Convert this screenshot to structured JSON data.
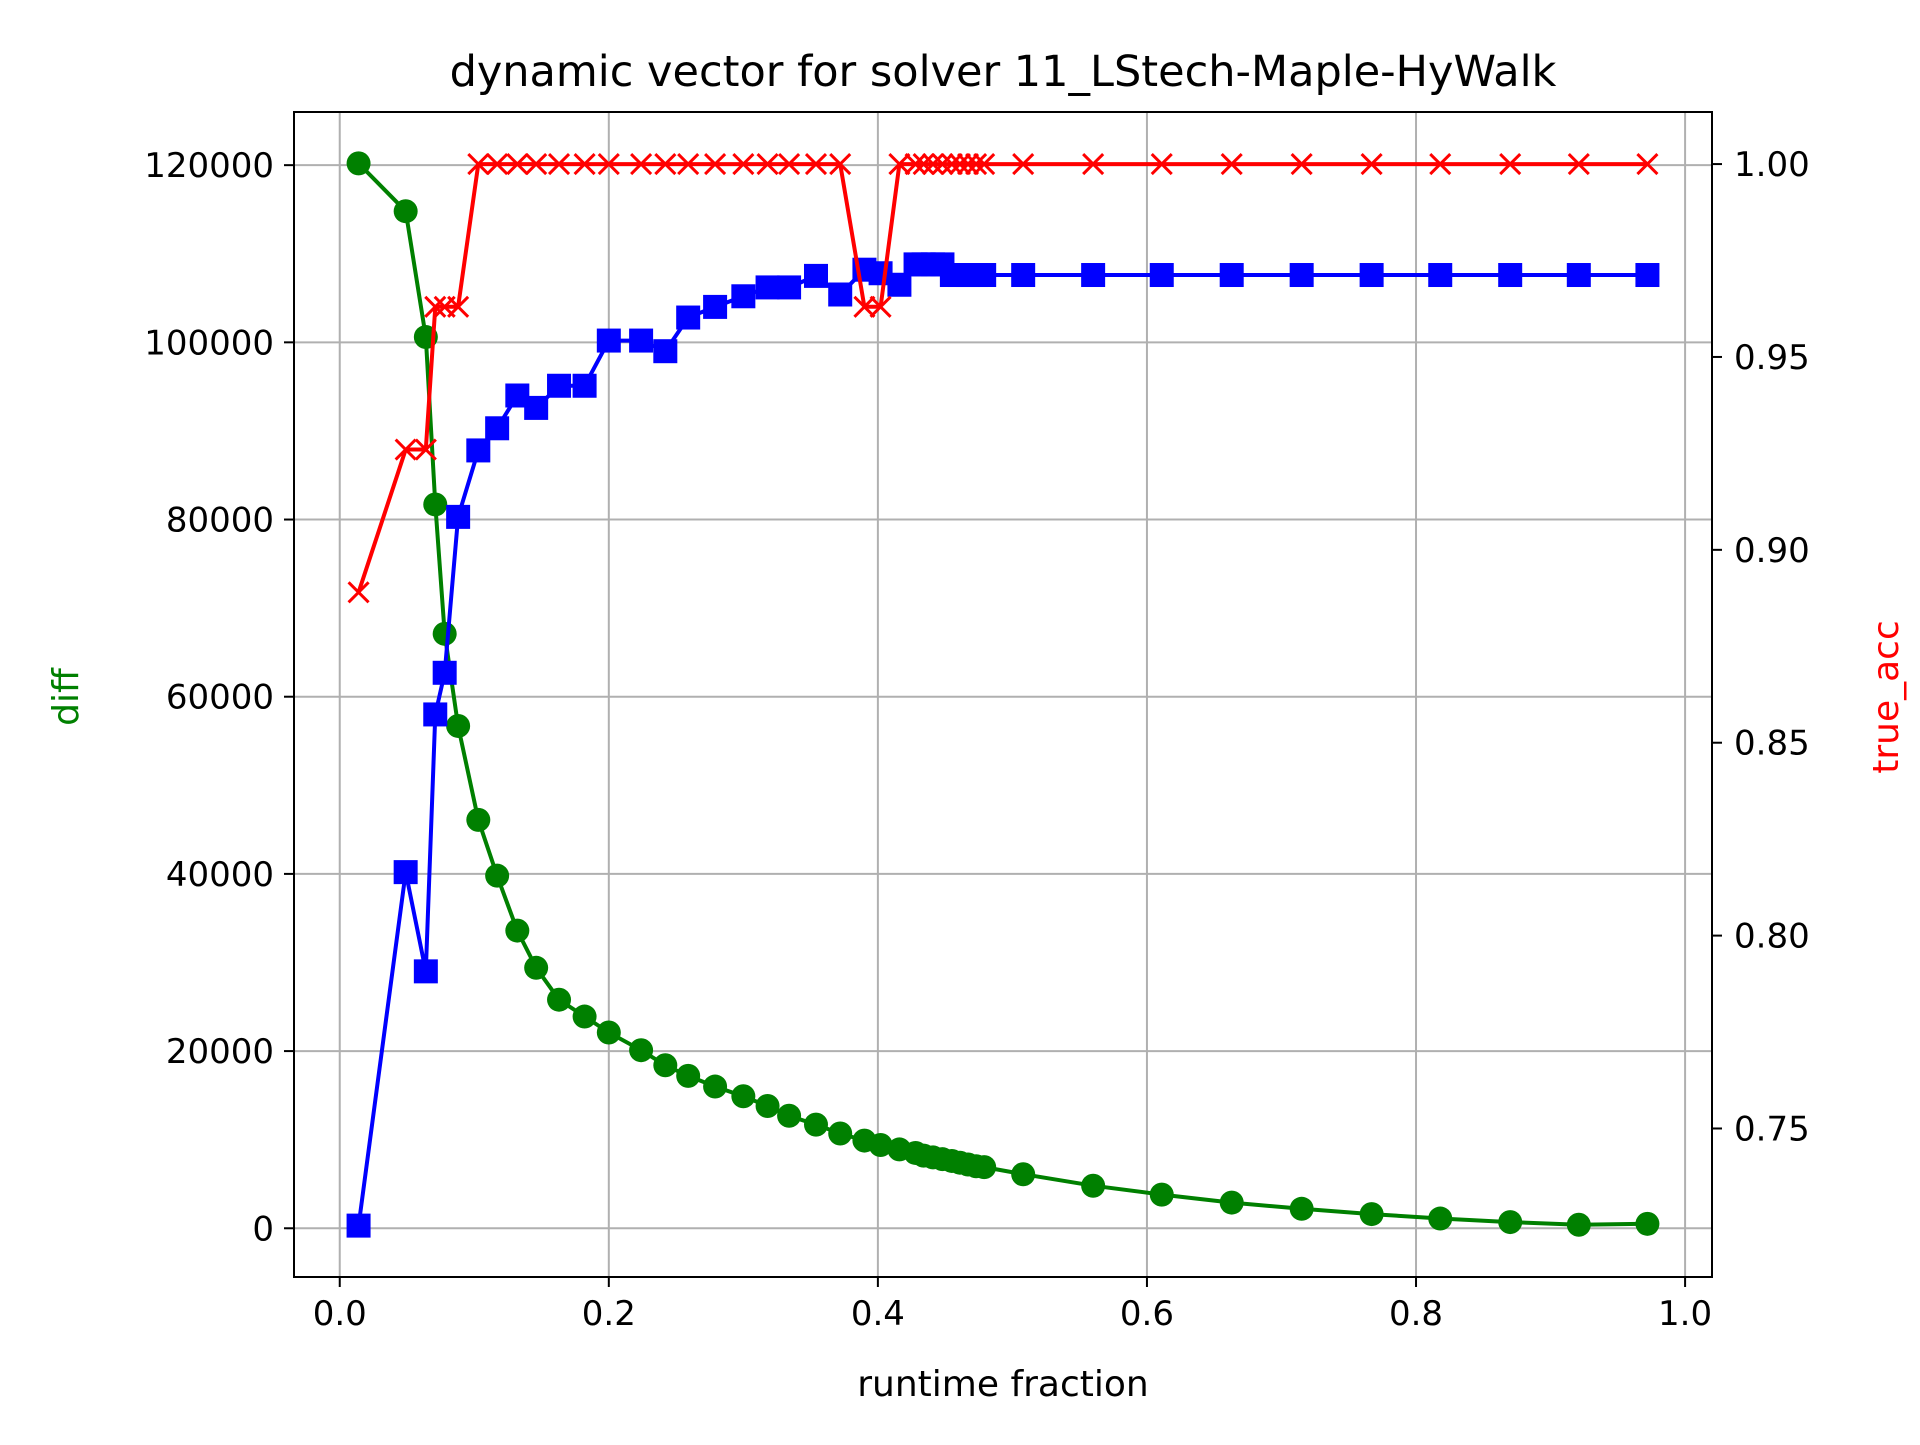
{
  "chart_data": {
    "type": "line",
    "title": "dynamic vector for solver 11_LStech-Maple-HyWalk",
    "xlabel": "runtime fraction",
    "ylabel": "diff",
    "y2label": "true_acc",
    "xlim": [
      -0.034,
      1.02
    ],
    "ylim": [
      -5500,
      126000
    ],
    "y2lim": [
      0.7115,
      1.0135
    ],
    "xticks": [
      "0.0",
      "0.2",
      "0.4",
      "0.6",
      "0.8",
      "1.0"
    ],
    "yticks": [
      "0",
      "20000",
      "40000",
      "60000",
      "80000",
      "100000",
      "120000"
    ],
    "y2ticks": [
      "0.75",
      "0.80",
      "0.85",
      "0.90",
      "0.95",
      "1.00"
    ],
    "grid": true,
    "colors": {
      "diff": "#008000",
      "blue_series": "#0000ff",
      "true_acc": "#ff0000",
      "grid": "#b0b0b0"
    },
    "series": [
      {
        "axis": "left",
        "color": "#008000",
        "marker": "circle",
        "x": [
          0.014,
          0.049,
          0.064,
          0.071,
          0.078,
          0.088,
          0.103,
          0.117,
          0.132,
          0.146,
          0.163,
          0.182,
          0.2,
          0.224,
          0.242,
          0.259,
          0.279,
          0.3,
          0.318,
          0.334,
          0.354,
          0.372,
          0.39,
          0.402,
          0.416,
          0.428,
          0.434,
          0.441,
          0.448,
          0.455,
          0.461,
          0.467,
          0.473,
          0.479,
          0.508,
          0.56,
          0.611,
          0.663,
          0.715,
          0.767,
          0.818,
          0.87,
          0.921,
          0.972
        ],
        "y": [
          120200,
          114800,
          100600,
          81700,
          67100,
          56700,
          46100,
          39800,
          33600,
          29400,
          25800,
          23900,
          22100,
          20100,
          18400,
          17200,
          16000,
          14900,
          13800,
          12700,
          11700,
          10700,
          9900,
          9400,
          8900,
          8500,
          8200,
          8000,
          7800,
          7600,
          7400,
          7200,
          7000,
          6900,
          6100,
          4800,
          3800,
          2900,
          2200,
          1600,
          1100,
          700,
          400,
          500
        ]
      },
      {
        "axis": "left",
        "color": "#0000ff",
        "marker": "square",
        "x": [
          0.014,
          0.049,
          0.064,
          0.071,
          0.078,
          0.088,
          0.103,
          0.117,
          0.132,
          0.146,
          0.163,
          0.182,
          0.2,
          0.224,
          0.242,
          0.259,
          0.279,
          0.3,
          0.318,
          0.334,
          0.354,
          0.372,
          0.39,
          0.402,
          0.416,
          0.428,
          0.434,
          0.441,
          0.448,
          0.455,
          0.461,
          0.467,
          0.473,
          0.479,
          0.508,
          0.56,
          0.611,
          0.663,
          0.715,
          0.767,
          0.818,
          0.87,
          0.921,
          0.972
        ],
        "y": [
          300,
          40200,
          29000,
          58000,
          62700,
          80300,
          87800,
          90300,
          94000,
          92600,
          95100,
          95100,
          100200,
          100200,
          99000,
          102800,
          104000,
          105200,
          106200,
          106200,
          107500,
          105400,
          108200,
          107800,
          106500,
          108800,
          108800,
          108800,
          108800,
          107600,
          107600,
          107600,
          107600,
          107600,
          107600,
          107600,
          107600,
          107600,
          107600,
          107600,
          107600,
          107600,
          107600,
          107600
        ]
      },
      {
        "axis": "right",
        "color": "#ff0000",
        "marker": "x",
        "x": [
          0.014,
          0.049,
          0.064,
          0.071,
          0.078,
          0.088,
          0.103,
          0.117,
          0.132,
          0.146,
          0.163,
          0.182,
          0.2,
          0.224,
          0.242,
          0.259,
          0.279,
          0.3,
          0.318,
          0.334,
          0.354,
          0.372,
          0.39,
          0.402,
          0.416,
          0.428,
          0.434,
          0.441,
          0.448,
          0.455,
          0.461,
          0.467,
          0.473,
          0.479,
          0.508,
          0.56,
          0.611,
          0.663,
          0.715,
          0.767,
          0.818,
          0.87,
          0.921,
          0.972
        ],
        "y": [
          0.889,
          0.926,
          0.926,
          0.963,
          0.963,
          0.963,
          1.0,
          1.0,
          1.0,
          1.0,
          1.0,
          1.0,
          1.0,
          1.0,
          1.0,
          1.0,
          1.0,
          1.0,
          1.0,
          1.0,
          1.0,
          1.0,
          0.963,
          0.963,
          1.0,
          1.0,
          1.0,
          1.0,
          1.0,
          1.0,
          1.0,
          1.0,
          1.0,
          1.0,
          1.0,
          1.0,
          1.0,
          1.0,
          1.0,
          1.0,
          1.0,
          1.0,
          1.0,
          1.0
        ]
      }
    ]
  }
}
